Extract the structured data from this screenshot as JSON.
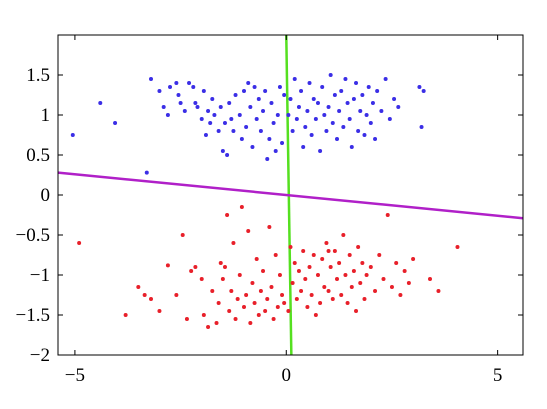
{
  "chart_data": {
    "type": "scatter",
    "title": "",
    "xlabel": "",
    "ylabel": "",
    "xlim": [
      -5.4,
      5.6
    ],
    "ylim": [
      -2,
      2
    ],
    "x_ticks": [
      {
        "value": -5,
        "label": "−5"
      },
      {
        "value": 0,
        "label": "0"
      },
      {
        "value": 5,
        "label": "5"
      }
    ],
    "y_ticks": [
      {
        "value": 1.5,
        "label": "1.5"
      },
      {
        "value": 1,
        "label": "1"
      },
      {
        "value": 0.5,
        "label": "0.5"
      },
      {
        "value": 0,
        "label": "0"
      },
      {
        "value": -0.5,
        "label": "−0.5"
      },
      {
        "value": -1,
        "label": "−1"
      },
      {
        "value": -1.5,
        "label": "−1.5"
      },
      {
        "value": -2,
        "label": "−2"
      }
    ],
    "grid": false,
    "series": [
      {
        "color": "#3b2ee6",
        "points": [
          [
            -5.05,
            0.75
          ],
          [
            -4.4,
            1.15
          ],
          [
            -4.05,
            0.9
          ],
          [
            -3.3,
            0.28
          ],
          [
            -3.2,
            1.45
          ],
          [
            -3.0,
            1.3
          ],
          [
            -2.9,
            1.1
          ],
          [
            -2.8,
            1.0
          ],
          [
            -2.75,
            1.35
          ],
          [
            -2.6,
            1.4
          ],
          [
            -2.55,
            1.25
          ],
          [
            -2.5,
            1.15
          ],
          [
            -2.4,
            1.05
          ],
          [
            -2.3,
            1.4
          ],
          [
            -2.2,
            1.35
          ],
          [
            -2.15,
            1.15
          ],
          [
            -2.1,
            1.1
          ],
          [
            -2.0,
            0.95
          ],
          [
            -1.95,
            1.3
          ],
          [
            -1.9,
            0.75
          ],
          [
            -1.85,
            1.05
          ],
          [
            -1.8,
            0.9
          ],
          [
            -1.75,
            1.2
          ],
          [
            -1.7,
            1.0
          ],
          [
            -1.6,
            0.8
          ],
          [
            -1.55,
            1.1
          ],
          [
            -1.5,
            0.55
          ],
          [
            -1.45,
            0.9
          ],
          [
            -1.4,
            0.5
          ],
          [
            -1.35,
            1.15
          ],
          [
            -1.3,
            0.95
          ],
          [
            -1.25,
            0.8
          ],
          [
            -1.2,
            1.25
          ],
          [
            -1.1,
            1.0
          ],
          [
            -1.05,
            0.7
          ],
          [
            -1.0,
            1.3
          ],
          [
            -0.95,
            0.85
          ],
          [
            -0.9,
            1.4
          ],
          [
            -0.85,
            1.1
          ],
          [
            -0.8,
            0.6
          ],
          [
            -0.75,
            1.35
          ],
          [
            -0.7,
            0.95
          ],
          [
            -0.65,
            1.2
          ],
          [
            -0.6,
            0.8
          ],
          [
            -0.55,
            1.05
          ],
          [
            -0.5,
            1.3
          ],
          [
            -0.45,
            0.45
          ],
          [
            -0.4,
            0.7
          ],
          [
            -0.35,
            1.15
          ],
          [
            -0.3,
            0.9
          ],
          [
            -0.25,
            0.55
          ],
          [
            -0.2,
            1.0
          ],
          [
            -0.15,
            1.35
          ],
          [
            -0.1,
            0.65
          ],
          [
            -0.05,
            1.25
          ],
          [
            0.05,
            1.0
          ],
          [
            0.1,
            1.2
          ],
          [
            0.15,
            0.8
          ],
          [
            0.2,
            1.45
          ],
          [
            0.25,
            0.95
          ],
          [
            0.3,
            1.1
          ],
          [
            0.35,
            1.3
          ],
          [
            0.4,
            0.6
          ],
          [
            0.45,
            0.85
          ],
          [
            0.5,
            1.05
          ],
          [
            0.55,
            1.4
          ],
          [
            0.6,
            0.75
          ],
          [
            0.65,
            1.2
          ],
          [
            0.7,
            0.95
          ],
          [
            0.75,
            1.15
          ],
          [
            0.8,
            0.55
          ],
          [
            0.85,
            1.35
          ],
          [
            0.9,
            1.0
          ],
          [
            0.95,
            0.8
          ],
          [
            1.0,
            1.1
          ],
          [
            1.05,
            1.5
          ],
          [
            1.1,
            0.9
          ],
          [
            1.15,
            1.25
          ],
          [
            1.2,
            0.7
          ],
          [
            1.25,
            1.05
          ],
          [
            1.3,
            1.3
          ],
          [
            1.35,
            0.85
          ],
          [
            1.4,
            1.45
          ],
          [
            1.45,
            1.15
          ],
          [
            1.5,
            0.95
          ],
          [
            1.55,
            0.6
          ],
          [
            1.6,
            1.2
          ],
          [
            1.65,
            1.4
          ],
          [
            1.7,
            0.8
          ],
          [
            1.75,
            1.05
          ],
          [
            1.8,
            1.25
          ],
          [
            1.85,
            0.75
          ],
          [
            1.9,
            1.0
          ],
          [
            1.95,
            1.35
          ],
          [
            2.0,
            0.9
          ],
          [
            2.05,
            1.15
          ],
          [
            2.1,
            0.7
          ],
          [
            2.15,
            1.3
          ],
          [
            2.25,
            1.05
          ],
          [
            2.35,
            1.45
          ],
          [
            2.45,
            0.95
          ],
          [
            2.55,
            1.2
          ],
          [
            2.65,
            1.1
          ],
          [
            3.15,
            1.35
          ],
          [
            3.2,
            0.85
          ],
          [
            3.25,
            1.3
          ]
        ]
      },
      {
        "color": "#e8202a",
        "points": [
          [
            -4.9,
            -0.6
          ],
          [
            -3.8,
            -1.5
          ],
          [
            -3.5,
            -1.15
          ],
          [
            -3.35,
            -1.25
          ],
          [
            -3.2,
            -1.3
          ],
          [
            -3.0,
            -1.45
          ],
          [
            -2.8,
            -0.88
          ],
          [
            -2.6,
            -1.25
          ],
          [
            -2.45,
            -0.5
          ],
          [
            -2.35,
            -1.55
          ],
          [
            -2.25,
            -0.95
          ],
          [
            -2.15,
            -0.9
          ],
          [
            -2.0,
            -1.05
          ],
          [
            -1.95,
            -1.5
          ],
          [
            -1.85,
            -1.65
          ],
          [
            -1.75,
            -1.2
          ],
          [
            -1.65,
            -1.6
          ],
          [
            -1.6,
            -1.35
          ],
          [
            -1.55,
            -0.85
          ],
          [
            -1.5,
            -1.05
          ],
          [
            -1.45,
            -0.9
          ],
          [
            -1.4,
            -0.25
          ],
          [
            -1.35,
            -1.45
          ],
          [
            -1.3,
            -1.2
          ],
          [
            -1.25,
            -0.6
          ],
          [
            -1.2,
            -1.55
          ],
          [
            -1.15,
            -1.3
          ],
          [
            -1.1,
            -1.0
          ],
          [
            -1.05,
            -0.15
          ],
          [
            -1.0,
            -1.4
          ],
          [
            -0.95,
            -1.25
          ],
          [
            -0.9,
            -0.45
          ],
          [
            -0.85,
            -1.6
          ],
          [
            -0.8,
            -1.1
          ],
          [
            -0.75,
            -1.35
          ],
          [
            -0.7,
            -0.8
          ],
          [
            -0.65,
            -1.5
          ],
          [
            -0.6,
            -1.2
          ],
          [
            -0.55,
            -0.95
          ],
          [
            -0.5,
            -1.45
          ],
          [
            -0.45,
            -1.3
          ],
          [
            -0.4,
            -0.4
          ],
          [
            -0.35,
            -1.15
          ],
          [
            -0.3,
            -1.55
          ],
          [
            -0.25,
            -0.75
          ],
          [
            -0.2,
            -1.4
          ],
          [
            -0.15,
            -1.0
          ],
          [
            -0.1,
            -1.25
          ],
          [
            -0.05,
            -1.35
          ],
          [
            0.05,
            -1.45
          ],
          [
            0.1,
            -0.65
          ],
          [
            0.15,
            -1.1
          ],
          [
            0.2,
            -0.85
          ],
          [
            0.25,
            -1.3
          ],
          [
            0.3,
            -0.95
          ],
          [
            0.35,
            -1.2
          ],
          [
            0.4,
            -0.7
          ],
          [
            0.45,
            -1.05
          ],
          [
            0.5,
            -1.4
          ],
          [
            0.55,
            -0.9
          ],
          [
            0.6,
            -1.25
          ],
          [
            0.65,
            -0.75
          ],
          [
            0.7,
            -1.5
          ],
          [
            0.75,
            -1.0
          ],
          [
            0.8,
            -1.35
          ],
          [
            0.85,
            -0.8
          ],
          [
            0.9,
            -1.15
          ],
          [
            0.95,
            -0.6
          ],
          [
            1.0,
            -1.2
          ],
          [
            1.05,
            -0.9
          ],
          [
            1.1,
            -1.3
          ],
          [
            1.15,
            -0.7
          ],
          [
            1.2,
            -1.05
          ],
          [
            1.25,
            -0.85
          ],
          [
            1.3,
            -1.25
          ],
          [
            1.35,
            -0.5
          ],
          [
            1.4,
            -1.0
          ],
          [
            1.45,
            -1.35
          ],
          [
            1.5,
            -0.75
          ],
          [
            1.55,
            -1.15
          ],
          [
            1.6,
            -0.95
          ],
          [
            1.65,
            -1.45
          ],
          [
            1.7,
            -0.65
          ],
          [
            1.75,
            -1.1
          ],
          [
            1.8,
            -0.85
          ],
          [
            1.85,
            -1.3
          ],
          [
            1.9,
            -1.0
          ],
          [
            2.0,
            -0.9
          ],
          [
            2.1,
            -1.2
          ],
          [
            2.2,
            -0.75
          ],
          [
            2.3,
            -1.05
          ],
          [
            2.4,
            -0.25
          ],
          [
            2.5,
            -1.15
          ],
          [
            2.6,
            -0.85
          ],
          [
            2.7,
            -1.25
          ],
          [
            2.8,
            -0.95
          ],
          [
            2.9,
            -1.1
          ],
          [
            3.0,
            -0.8
          ],
          [
            3.4,
            -1.05
          ],
          [
            3.6,
            -1.2
          ],
          [
            4.05,
            -0.65
          ],
          [
            1.0,
            -0.7
          ]
        ]
      }
    ],
    "lines": [
      {
        "color": "#55e020",
        "points": [
          [
            0.0,
            2.0
          ],
          [
            0.12,
            -2.0
          ]
        ]
      },
      {
        "color": "#b020c8",
        "points": [
          [
            -5.4,
            0.28
          ],
          [
            5.6,
            -0.29
          ]
        ]
      }
    ]
  }
}
